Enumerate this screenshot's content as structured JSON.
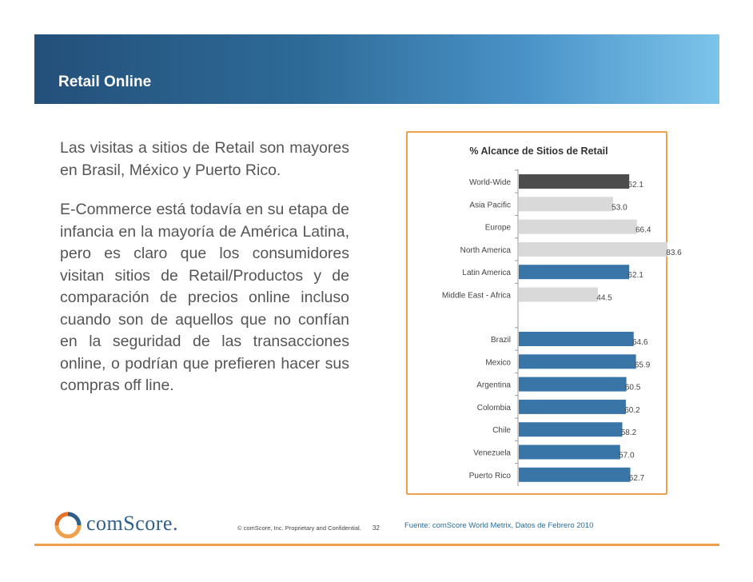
{
  "header": {
    "title": "Retail Online"
  },
  "body": {
    "paragraph1": "Las visitas a sitios de Retail son mayores en Brasil, México y Puerto Rico.",
    "paragraph2": "E-Commerce está todavía en su etapa de infancia en la mayoría de América Latina, pero es claro que los consumidores visitan sitios de Retail/Productos y de comparación de precios online incluso cuando son de aquellos que no confían en la seguridad de las transacciones online, o podrían que prefieren hacer sus compras off line."
  },
  "colors": {
    "accent": "#f0a04a",
    "world": "#4d4d4d",
    "region": "#d9d9d9",
    "latam": "#3a75a8"
  },
  "chart_data": {
    "type": "bar",
    "orientation": "horizontal",
    "title": "% Alcance de Sitios de Retail",
    "groups": [
      {
        "items": [
          {
            "label": "World-Wide",
            "value": 62.1,
            "label_text": "62.1",
            "color": "#4d4d4d"
          },
          {
            "label": "Asia Pacific",
            "value": 53.0,
            "label_text": "53.0",
            "color": "#d9d9d9"
          },
          {
            "label": "Europe",
            "value": 66.4,
            "label_text": "66.4",
            "color": "#d9d9d9"
          },
          {
            "label": "North America",
            "value": 83.6,
            "label_text": "83.6",
            "color": "#d9d9d9"
          },
          {
            "label": "Latin America",
            "value": 62.1,
            "label_text": "62.1",
            "color": "#3a75a8"
          },
          {
            "label": "Middle East - Africa",
            "value": 44.5,
            "label_text": "44.5",
            "color": "#d9d9d9"
          }
        ]
      },
      {
        "items": [
          {
            "label": "Brazil",
            "value": 64.6,
            "label_text": "64.6",
            "color": "#3a75a8"
          },
          {
            "label": "Mexico",
            "value": 65.9,
            "label_text": "65.9",
            "color": "#3a75a8"
          },
          {
            "label": "Argentina",
            "value": 60.5,
            "label_text": "60.5",
            "color": "#3a75a8"
          },
          {
            "label": "Colombia",
            "value": 60.2,
            "label_text": "60.2",
            "color": "#3a75a8"
          },
          {
            "label": "Chile",
            "value": 58.2,
            "label_text": "58.2",
            "color": "#3a75a8"
          },
          {
            "label": "Venezuela",
            "value": 57.0,
            "label_text": "57.0",
            "color": "#3a75a8"
          },
          {
            "label": "Puerto Rico",
            "value": 62.7,
            "label_text": "62.7",
            "color": "#3a75a8"
          }
        ]
      }
    ],
    "xlim": [
      0,
      100
    ],
    "grid": false,
    "legend": "none"
  },
  "footer": {
    "logo_text": "comScore.",
    "copyright": "© comScore, Inc.  Proprietary and Confidential.",
    "page_number": "32",
    "source": "Fuente:  comScore World Metrix, Datos de Febrero  2010"
  }
}
